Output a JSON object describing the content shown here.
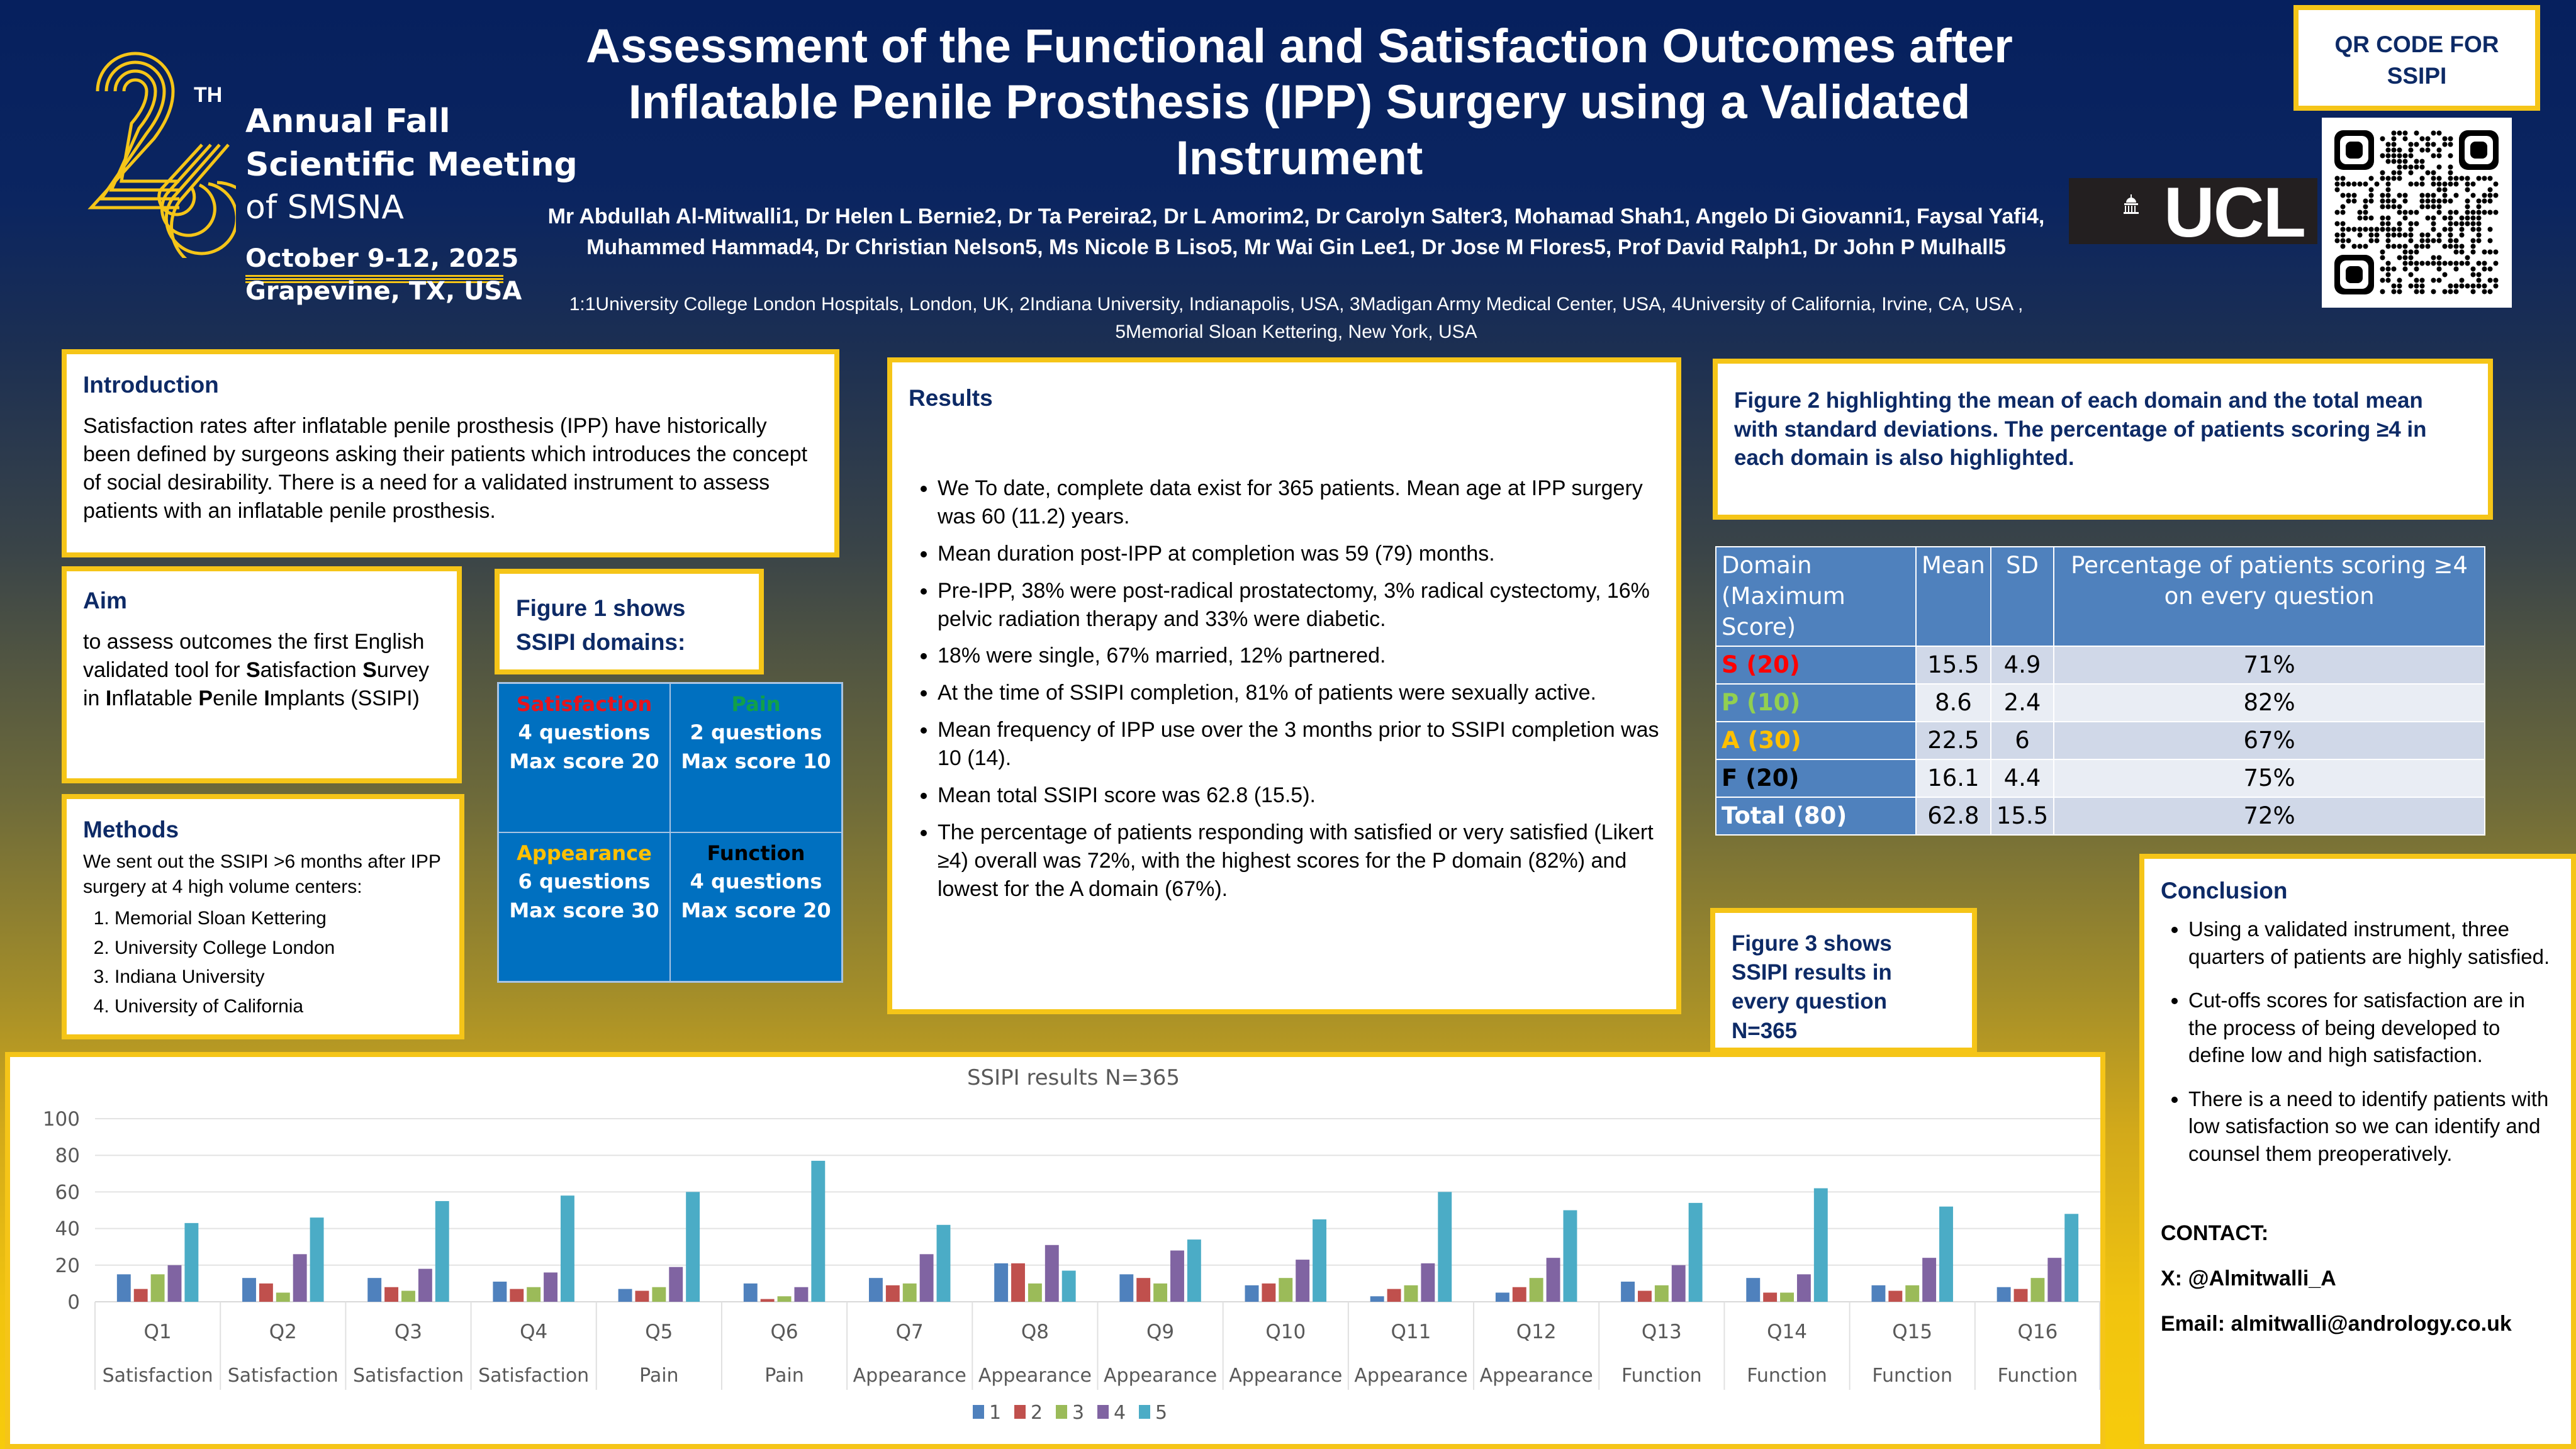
{
  "logo": {
    "number": "26",
    "superscript": "TH",
    "line1": "Annual Fall",
    "line2": "Scientific Meeting",
    "line3": "of SMSNA",
    "date": "October 9-12, 2025",
    "location": "Grapevine, TX, USA"
  },
  "header": {
    "title": "Assessment of the Functional and Satisfaction Outcomes after Inflatable Penile Prosthesis (IPP) Surgery using a Validated Instrument",
    "authors": "Mr Abdullah Al-Mitwalli1, Dr Helen L Bernie2, Dr Ta Pereira2, Dr L Amorim2, Dr Carolyn Salter3, Mohamad Shah1, Angelo Di Giovanni1, Faysal Yafi4, Muhammed Hammad4, Dr Christian Nelson5, Ms Nicole B Liso5, Mr Wai Gin Lee1, Dr Jose M Flores5, Prof David Ralph1, Dr John P Mulhall5",
    "affiliations": "1:1University College London Hospitals, London, UK, 2Indiana University, Indianapolis, USA, 3Madigan Army Medical Center, USA, 4University of California, Irvine, CA, USA , 5Memorial Sloan Kettering, New York, USA"
  },
  "ucl_logo": "UCL",
  "qr": {
    "label_line1": "QR CODE FOR",
    "label_line2": "SSIPI",
    "icon": "qr-code-icon"
  },
  "introduction": {
    "heading": "Introduction",
    "text": "Satisfaction rates after inflatable penile prosthesis (IPP) have historically been defined by surgeons asking their patients which introduces the concept of social desirability. There is a need for a validated instrument to assess patients with an inflatable penile prosthesis."
  },
  "aim": {
    "heading": "Aim",
    "text_prefix": "to assess outcomes the first English validated tool for ",
    "acronym_words": [
      {
        "initial": "S",
        "rest": "atisfaction "
      },
      {
        "initial": "S",
        "rest": "urvey in "
      },
      {
        "initial": "I",
        "rest": "nflatable "
      },
      {
        "initial": "P",
        "rest": "enile "
      },
      {
        "initial": "I",
        "rest": "mplants (SSIPI)"
      }
    ]
  },
  "methods": {
    "heading": "Methods",
    "text": "We sent out the SSIPI >6 months after IPP surgery at 4 high volume centers:",
    "centers": [
      "Memorial Sloan Kettering",
      "University College London",
      "Indiana University",
      "University of California"
    ]
  },
  "figure1": {
    "caption_line1": "Figure 1 shows",
    "caption_line2": "SSIPI domains:",
    "domains": [
      {
        "name": "Satisfaction",
        "color": "#e8141c",
        "questions": "4 questions",
        "max": "Max score 20"
      },
      {
        "name": "Pain",
        "color": "#11a04a",
        "questions": "2 questions",
        "max": "Max score 10"
      },
      {
        "name": "Appearance",
        "color": "#ffc000",
        "questions": "6 questions",
        "max": "Max score 30"
      },
      {
        "name": "Function",
        "color": "#000000",
        "questions": "4 questions",
        "max": "Max score 20"
      }
    ]
  },
  "results": {
    "heading": "Results",
    "bullets": [
      "We To date, complete data exist for 365 patients. Mean age at IPP surgery was 60 (11.2) years.",
      "Mean duration post-IPP at completion was 59 (79) months.",
      "Pre-IPP, 38% were post-radical prostatectomy, 3% radical cystectomy, 16% pelvic radiation therapy and 33% were diabetic.",
      "18% were single, 67% married, 12% partnered.",
      "At the time of SSIPI completion, 81% of patients were sexually active.",
      "Mean frequency of IPP use over the 3 months prior to SSIPI completion was 10 (14).",
      "Mean total SSIPI score was 62.8  (15.5).",
      "The percentage of patients responding with satisfied or very satisfied (Likert ≥4) overall  was 72%, with the highest scores for the P domain (82%) and lowest for the A domain (67%)."
    ]
  },
  "figure2": {
    "caption": "Figure 2 highlighting the mean of each domain and the total mean with standard deviations. The percentage of patients scoring ≥4 in each domain is also highlighted."
  },
  "domain_table": {
    "headers": [
      "Domain (Maximum Score)",
      "Mean",
      "SD",
      "Percentage of patients scoring ≥4 on every question"
    ],
    "rows": [
      {
        "domain": "S (20)",
        "color": "#ff0000",
        "mean": "15.5",
        "sd": "4.9",
        "pct": "71%"
      },
      {
        "domain": "P (10)",
        "color": "#92d050",
        "mean": "8.6",
        "sd": "2.4",
        "pct": "82%"
      },
      {
        "domain": "A (30)",
        "color": "#ffc000",
        "mean": "22.5",
        "sd": "6",
        "pct": "67%"
      },
      {
        "domain": "F (20)",
        "color": "#000000",
        "mean": "16.1",
        "sd": "4.4",
        "pct": "75%"
      },
      {
        "domain": "Total (80)",
        "color": "#ffffff",
        "mean": "62.8",
        "sd": "15.5",
        "pct": "72%"
      }
    ]
  },
  "figure3": {
    "caption_line1": "Figure 3 shows",
    "caption_line2": "SSIPI results in",
    "caption_line3": "every question",
    "caption_line4": "N=365"
  },
  "conclusion": {
    "heading": "Conclusion",
    "bullets": [
      "Using a validated instrument, three quarters of patients are highly satisfied.",
      "Cut-offs scores for satisfaction are in the process of being developed to define low and high satisfaction.",
      "There is a need to identify patients with low satisfaction so we can identify and counsel them preoperatively."
    ],
    "contact_heading": "CONTACT:",
    "twitter": "X: @Almitwalli_A",
    "email": "Email: almitwalli@andrology.co.uk"
  },
  "chart_data": {
    "type": "bar",
    "title": "SSIPI results N=365",
    "xlabel": "",
    "ylabel": "",
    "ylim": [
      0,
      100
    ],
    "yticks": [
      0,
      20,
      40,
      60,
      80,
      100
    ],
    "grid": true,
    "legend_position": "bottom",
    "categories": [
      "Q1",
      "Q2",
      "Q3",
      "Q4",
      "Q5",
      "Q6",
      "Q7",
      "Q8",
      "Q9",
      "Q10",
      "Q11",
      "Q12",
      "Q13",
      "Q14",
      "Q15",
      "Q16"
    ],
    "category_groups": [
      "Satisfaction",
      "Satisfaction",
      "Satisfaction",
      "Satisfaction",
      "Pain",
      "Pain",
      "Appearance",
      "Appearance",
      "Appearance",
      "Appearance",
      "Appearance",
      "Appearance",
      "Function",
      "Function",
      "Function",
      "Function"
    ],
    "series": [
      {
        "name": "1",
        "color": "#4f81bd",
        "values": [
          15,
          13,
          13,
          11,
          7,
          10,
          13,
          21,
          15,
          9,
          3,
          5,
          11,
          13,
          9,
          8
        ]
      },
      {
        "name": "2",
        "color": "#c0504d",
        "values": [
          7,
          10,
          8,
          7,
          6,
          1.5,
          9,
          21,
          13,
          10,
          7,
          8,
          6,
          5,
          6,
          7
        ]
      },
      {
        "name": "3",
        "color": "#9bbb59",
        "values": [
          15,
          5,
          6,
          8,
          8,
          3,
          10,
          10,
          10,
          13,
          9,
          13,
          9,
          5,
          9,
          13
        ]
      },
      {
        "name": "4",
        "color": "#8064a2",
        "values": [
          20,
          26,
          18,
          16,
          19,
          8,
          26,
          31,
          28,
          23,
          21,
          24,
          20,
          15,
          24,
          24
        ]
      },
      {
        "name": "5",
        "color": "#4bacc6",
        "values": [
          43,
          46,
          55,
          58,
          60,
          77,
          42,
          17,
          34,
          45,
          60,
          50,
          54,
          62,
          52,
          48
        ]
      }
    ]
  }
}
